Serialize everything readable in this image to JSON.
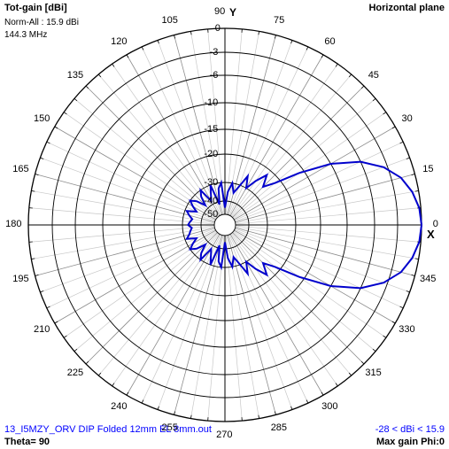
{
  "header": {
    "title": "Tot-gain [dBi]",
    "norm": "Norm-All : 15.9 dBi",
    "freq": "144.3 MHz",
    "plane": "Horizontal plane"
  },
  "footer": {
    "file": "13_I5MZY_ORV DIP Folded 12mm EL 8mm.out",
    "range": "-28 < dBi < 15.9",
    "theta": "Theta= 90",
    "maxgain": "Max gain Phi:0"
  },
  "axes": {
    "y_axis_label": "Y",
    "x_axis_label": "X",
    "angle_labels": [
      "0",
      "15",
      "30",
      "45",
      "60",
      "75",
      "90",
      "105",
      "120",
      "135",
      "150",
      "165",
      "180",
      "195",
      "210",
      "225",
      "240",
      "255",
      "270",
      "285",
      "300",
      "315",
      "330",
      "345"
    ],
    "db_labels": [
      "0",
      "-3",
      "-6",
      "-10",
      "-15",
      "-20",
      "-30",
      "-40",
      "-50"
    ]
  },
  "colors": {
    "trace": "#0000cc",
    "grid": "#000000",
    "minor_grid": "#c8c8c8",
    "label_blue": "#0000ff"
  },
  "chart_data": {
    "type": "polar",
    "angle_unit": "deg",
    "r_unit": "dBi (normalized)",
    "r_ticks": [
      0,
      -3,
      -6,
      -10,
      -15,
      -20,
      -30,
      -40,
      -50
    ],
    "theta": [
      0,
      5,
      10,
      15,
      20,
      25,
      30,
      35,
      40,
      45,
      50,
      55,
      60,
      65,
      70,
      75,
      80,
      85,
      90,
      95,
      100,
      105,
      110,
      115,
      120,
      125,
      130,
      135,
      140,
      145,
      150,
      155,
      160,
      165,
      170,
      175,
      180,
      185,
      190,
      195,
      200,
      205,
      210,
      215,
      220,
      225,
      230,
      235,
      240,
      245,
      250,
      255,
      260,
      265,
      270,
      275,
      280,
      285,
      290,
      295,
      300,
      305,
      310,
      315,
      320,
      325,
      330,
      335,
      340,
      345,
      350,
      355
    ],
    "r": [
      0,
      -0.2,
      -0.8,
      -1.8,
      -3.5,
      -6,
      -10,
      -16,
      -22,
      -26,
      -22,
      -26,
      -30,
      -26,
      -31,
      -35,
      -30,
      -35,
      -45,
      -30,
      -33,
      -42,
      -30,
      -35,
      -38,
      -30,
      -33,
      -38,
      -33,
      -30,
      -33,
      -36,
      -31,
      -33,
      -35,
      -34,
      -33,
      -35,
      -34,
      -33,
      -31,
      -36,
      -33,
      -30,
      -33,
      -38,
      -33,
      -30,
      -38,
      -35,
      -30,
      -42,
      -33,
      -30,
      -45,
      -35,
      -30,
      -35,
      -31,
      -26,
      -30,
      -26,
      -22,
      -26,
      -22,
      -16,
      -10,
      -6,
      -3.5,
      -1.8,
      -0.8,
      -0.2
    ]
  }
}
